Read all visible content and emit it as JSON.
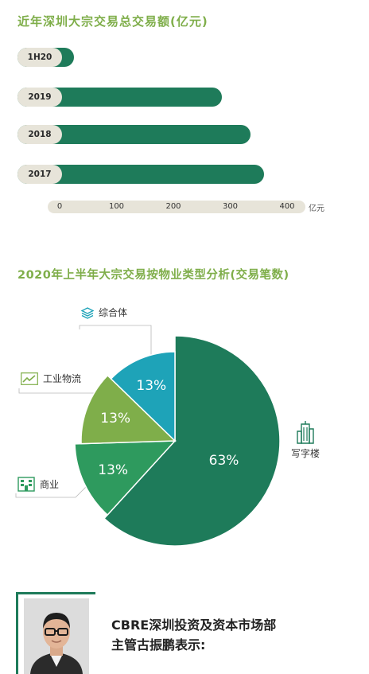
{
  "chart_data": [
    {
      "type": "bar",
      "orientation": "horizontal",
      "title": "近年深圳大宗交易总交易额(亿元)",
      "categories": [
        "1H20",
        "2019",
        "2018",
        "2017"
      ],
      "values": [
        25,
        285,
        335,
        360
      ],
      "xticks": [
        "0",
        "100",
        "200",
        "300",
        "400"
      ],
      "xlim": [
        0,
        400
      ],
      "unit": "亿元",
      "colors": {
        "bar": "#1e7b5a",
        "track": "#e7e4d9"
      }
    },
    {
      "type": "pie",
      "title": "2020年上半年大宗交易按物业类型分析(交易笔数)",
      "slices": [
        {
          "label": "写字楼",
          "value": 63,
          "value_label": "63%",
          "color": "#1e7b5a",
          "icon": "office-building-icon"
        },
        {
          "label": "商业",
          "value": 13,
          "value_label": "13%",
          "color": "#2e9a5e",
          "icon": "shop-building-icon"
        },
        {
          "label": "工业物流",
          "value": 13,
          "value_label": "13%",
          "color": "#7fae4a",
          "icon": "trend-line-icon"
        },
        {
          "label": "综合体",
          "value": 13,
          "value_label": "13%",
          "color": "#1ea3b8",
          "icon": "layers-icon"
        }
      ]
    }
  ],
  "quote": {
    "line1": "CBRE深圳投资及资本市场部",
    "line2": "主管古振鹏表示:"
  }
}
